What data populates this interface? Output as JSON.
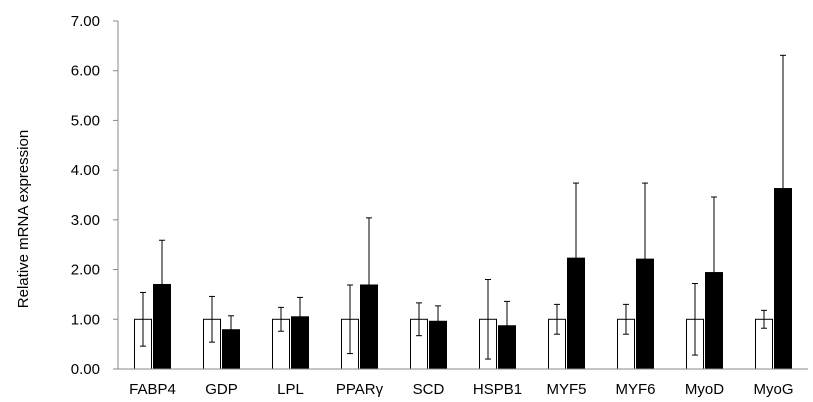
{
  "chart_data": {
    "type": "bar",
    "title": "",
    "xlabel": "",
    "ylabel": "Relative mRNA expression",
    "ylim": [
      0,
      7
    ],
    "yticks": [
      "0.00",
      "1.00",
      "2.00",
      "3.00",
      "4.00",
      "5.00",
      "6.00",
      "7.00"
    ],
    "categories": [
      "FABP4",
      "GDP",
      "LPL",
      "PPARγ",
      "SCD",
      "HSPB1",
      "MYF5",
      "MYF6",
      "MyoD",
      "MyoG"
    ],
    "grid": false,
    "legend": "none",
    "series": [
      {
        "fill": "#ffffff",
        "values": [
          1.0,
          1.0,
          1.0,
          1.0,
          1.0,
          1.0,
          1.0,
          1.0,
          1.0,
          1.0
        ],
        "error": [
          0.54,
          0.46,
          0.24,
          0.69,
          0.33,
          0.8,
          0.3,
          0.3,
          0.72,
          0.18
        ]
      },
      {
        "fill": "#000000",
        "values": [
          1.7,
          0.79,
          1.05,
          1.69,
          0.96,
          0.87,
          2.23,
          2.21,
          1.94,
          3.63
        ],
        "error": [
          0.89,
          0.28,
          0.39,
          1.35,
          0.31,
          0.49,
          1.51,
          1.53,
          1.52,
          2.68
        ]
      }
    ]
  }
}
